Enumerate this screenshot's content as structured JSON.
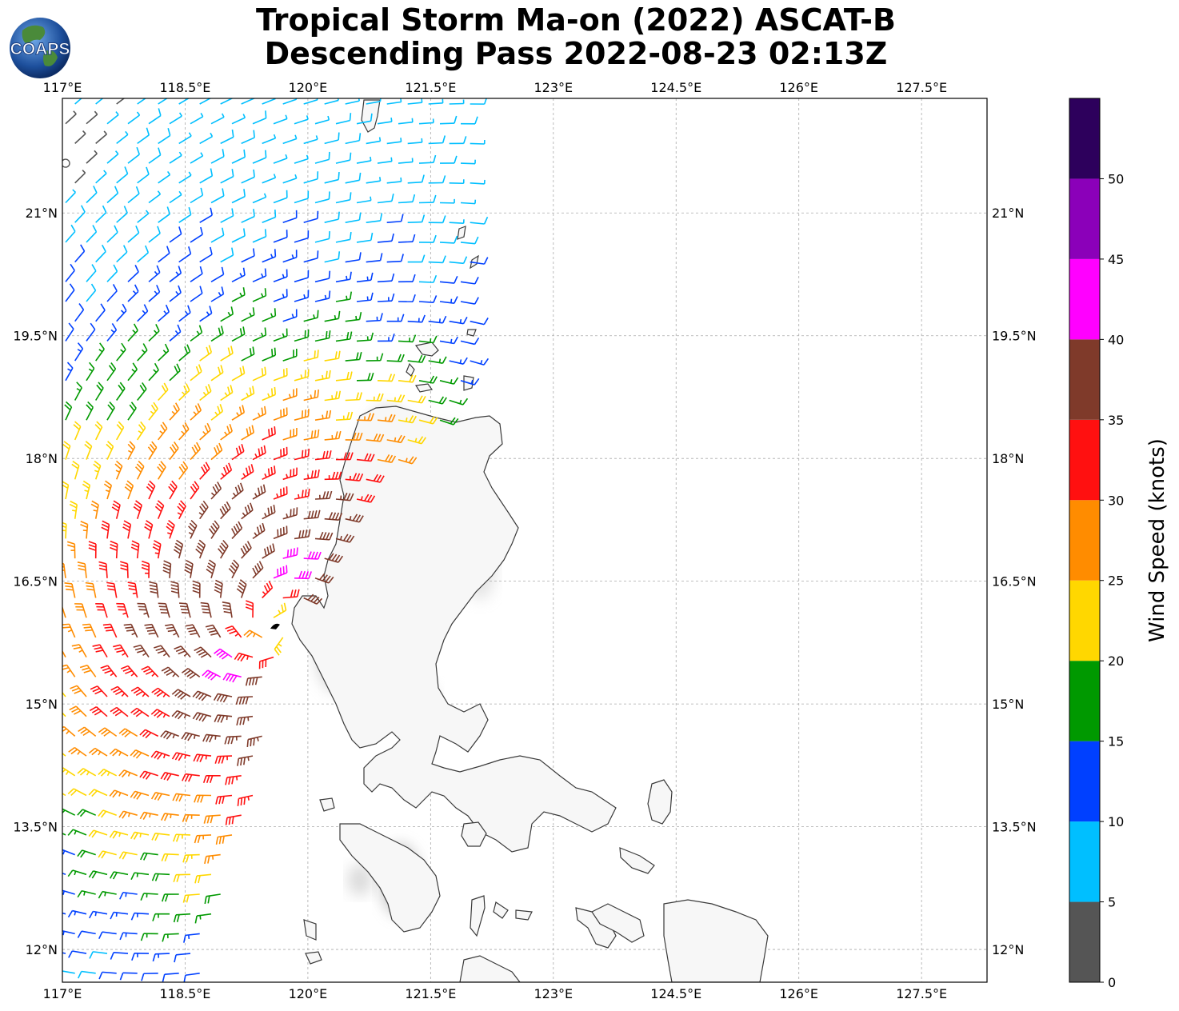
{
  "title": {
    "line1": "Tropical Storm Ma-on (2022) ASCAT-B",
    "line2": "Descending Pass 2022-08-23 02:13Z"
  },
  "logo": {
    "text": "COAPS"
  },
  "map": {
    "lon_labels": [
      "117°E",
      "118.5°E",
      "120°E",
      "121.5°E",
      "123°E",
      "124.5°E",
      "126°E",
      "127.5°E"
    ],
    "lat_labels": [
      "21°N",
      "19.5°N",
      "18°N",
      "16.5°N",
      "15°N",
      "13.5°N",
      "12°N"
    ],
    "lon_values": [
      117,
      118.5,
      120,
      121.5,
      123,
      124.5,
      126,
      127.5
    ],
    "lat_values": [
      21,
      19.5,
      18,
      16.5,
      15,
      13.5,
      12
    ],
    "extent": {
      "lon": [
        117,
        128.3
      ],
      "lat": [
        11.6,
        22.4
      ]
    },
    "storm_center": {
      "lon": 119.6,
      "lat": 15.95
    }
  },
  "colorbar": {
    "title": "Wind Speed (knots)",
    "tick_labels": [
      "0",
      "5",
      "10",
      "15",
      "20",
      "25",
      "30",
      "35",
      "40",
      "45",
      "50"
    ],
    "bins": [
      {
        "from": 0,
        "to": 5,
        "color": "#555555"
      },
      {
        "from": 5,
        "to": 10,
        "color": "#00bfff"
      },
      {
        "from": 10,
        "to": 15,
        "color": "#0040ff"
      },
      {
        "from": 15,
        "to": 20,
        "color": "#009900"
      },
      {
        "from": 20,
        "to": 25,
        "color": "#ffd700"
      },
      {
        "from": 25,
        "to": 30,
        "color": "#ff8c00"
      },
      {
        "from": 30,
        "to": 35,
        "color": "#ff1010"
      },
      {
        "from": 35,
        "to": 40,
        "color": "#7f3a2a"
      },
      {
        "from": 40,
        "to": 45,
        "color": "#ff00ff"
      },
      {
        "from": 45,
        "to": 50,
        "color": "#8b00b9"
      },
      {
        "from": 50,
        "to": 55,
        "color": "#2d005c"
      }
    ]
  }
}
